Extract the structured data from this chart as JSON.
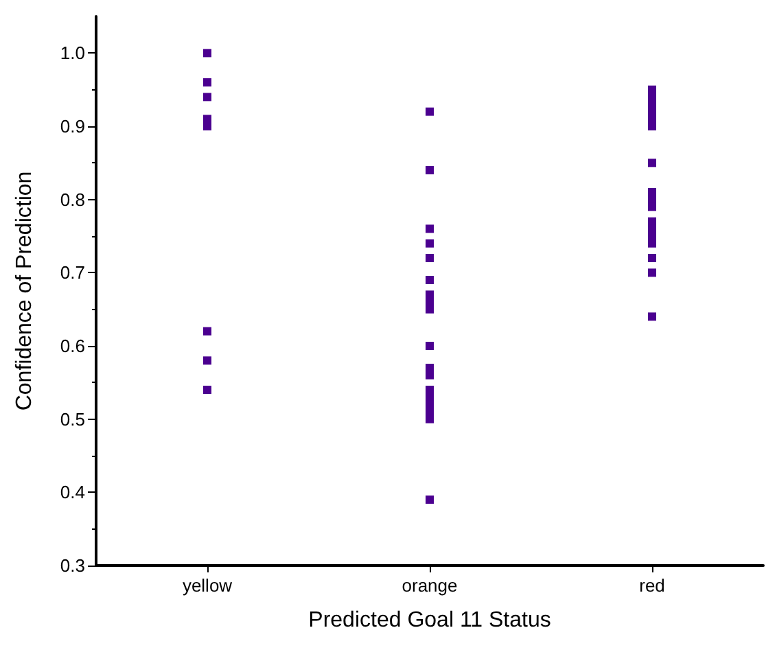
{
  "chart_data": {
    "type": "scatter",
    "xlabel": "Predicted Goal 11 Status",
    "ylabel": "Confidence of Prediction",
    "categories": [
      "yellow",
      "orange",
      "red"
    ],
    "series": [
      {
        "color": "#4b0090",
        "x": [
          "yellow",
          "yellow",
          "yellow",
          "yellow",
          "yellow",
          "yellow",
          "yellow",
          "yellow"
        ],
        "values": [
          1.0,
          0.96,
          0.94,
          0.91,
          0.9,
          0.62,
          0.58,
          0.54
        ]
      },
      {
        "color": "#4b0090",
        "x": [
          "orange",
          "orange",
          "orange",
          "orange",
          "orange",
          "orange",
          "orange",
          "orange",
          "orange",
          "orange",
          "orange",
          "orange",
          "orange",
          "orange",
          "orange",
          "orange",
          "orange",
          "orange"
        ],
        "values": [
          0.92,
          0.84,
          0.76,
          0.74,
          0.72,
          0.69,
          0.67,
          0.66,
          0.65,
          0.6,
          0.57,
          0.56,
          0.54,
          0.53,
          0.52,
          0.51,
          0.5,
          0.39
        ]
      },
      {
        "color": "#4b0090",
        "x": [
          "red",
          "red",
          "red",
          "red",
          "red",
          "red",
          "red",
          "red",
          "red",
          "red",
          "red",
          "red",
          "red",
          "red",
          "red",
          "red",
          "red"
        ],
        "values": [
          0.95,
          0.94,
          0.93,
          0.92,
          0.91,
          0.9,
          0.85,
          0.81,
          0.8,
          0.79,
          0.77,
          0.76,
          0.75,
          0.74,
          0.72,
          0.7,
          0.64
        ]
      }
    ],
    "marker": "square",
    "ylim": [
      0.3,
      1.05
    ],
    "yticks": [
      {
        "value": 0.3,
        "label": "0.3"
      },
      {
        "value": 0.4,
        "label": "0.4"
      },
      {
        "value": 0.5,
        "label": "0.5"
      },
      {
        "value": 0.6,
        "label": "0.6"
      },
      {
        "value": 0.7,
        "label": "0.7"
      },
      {
        "value": 0.8,
        "label": "0.8"
      },
      {
        "value": 0.9,
        "label": "0.9"
      },
      {
        "value": 1.0,
        "label": "1.0"
      }
    ],
    "grid": false
  }
}
